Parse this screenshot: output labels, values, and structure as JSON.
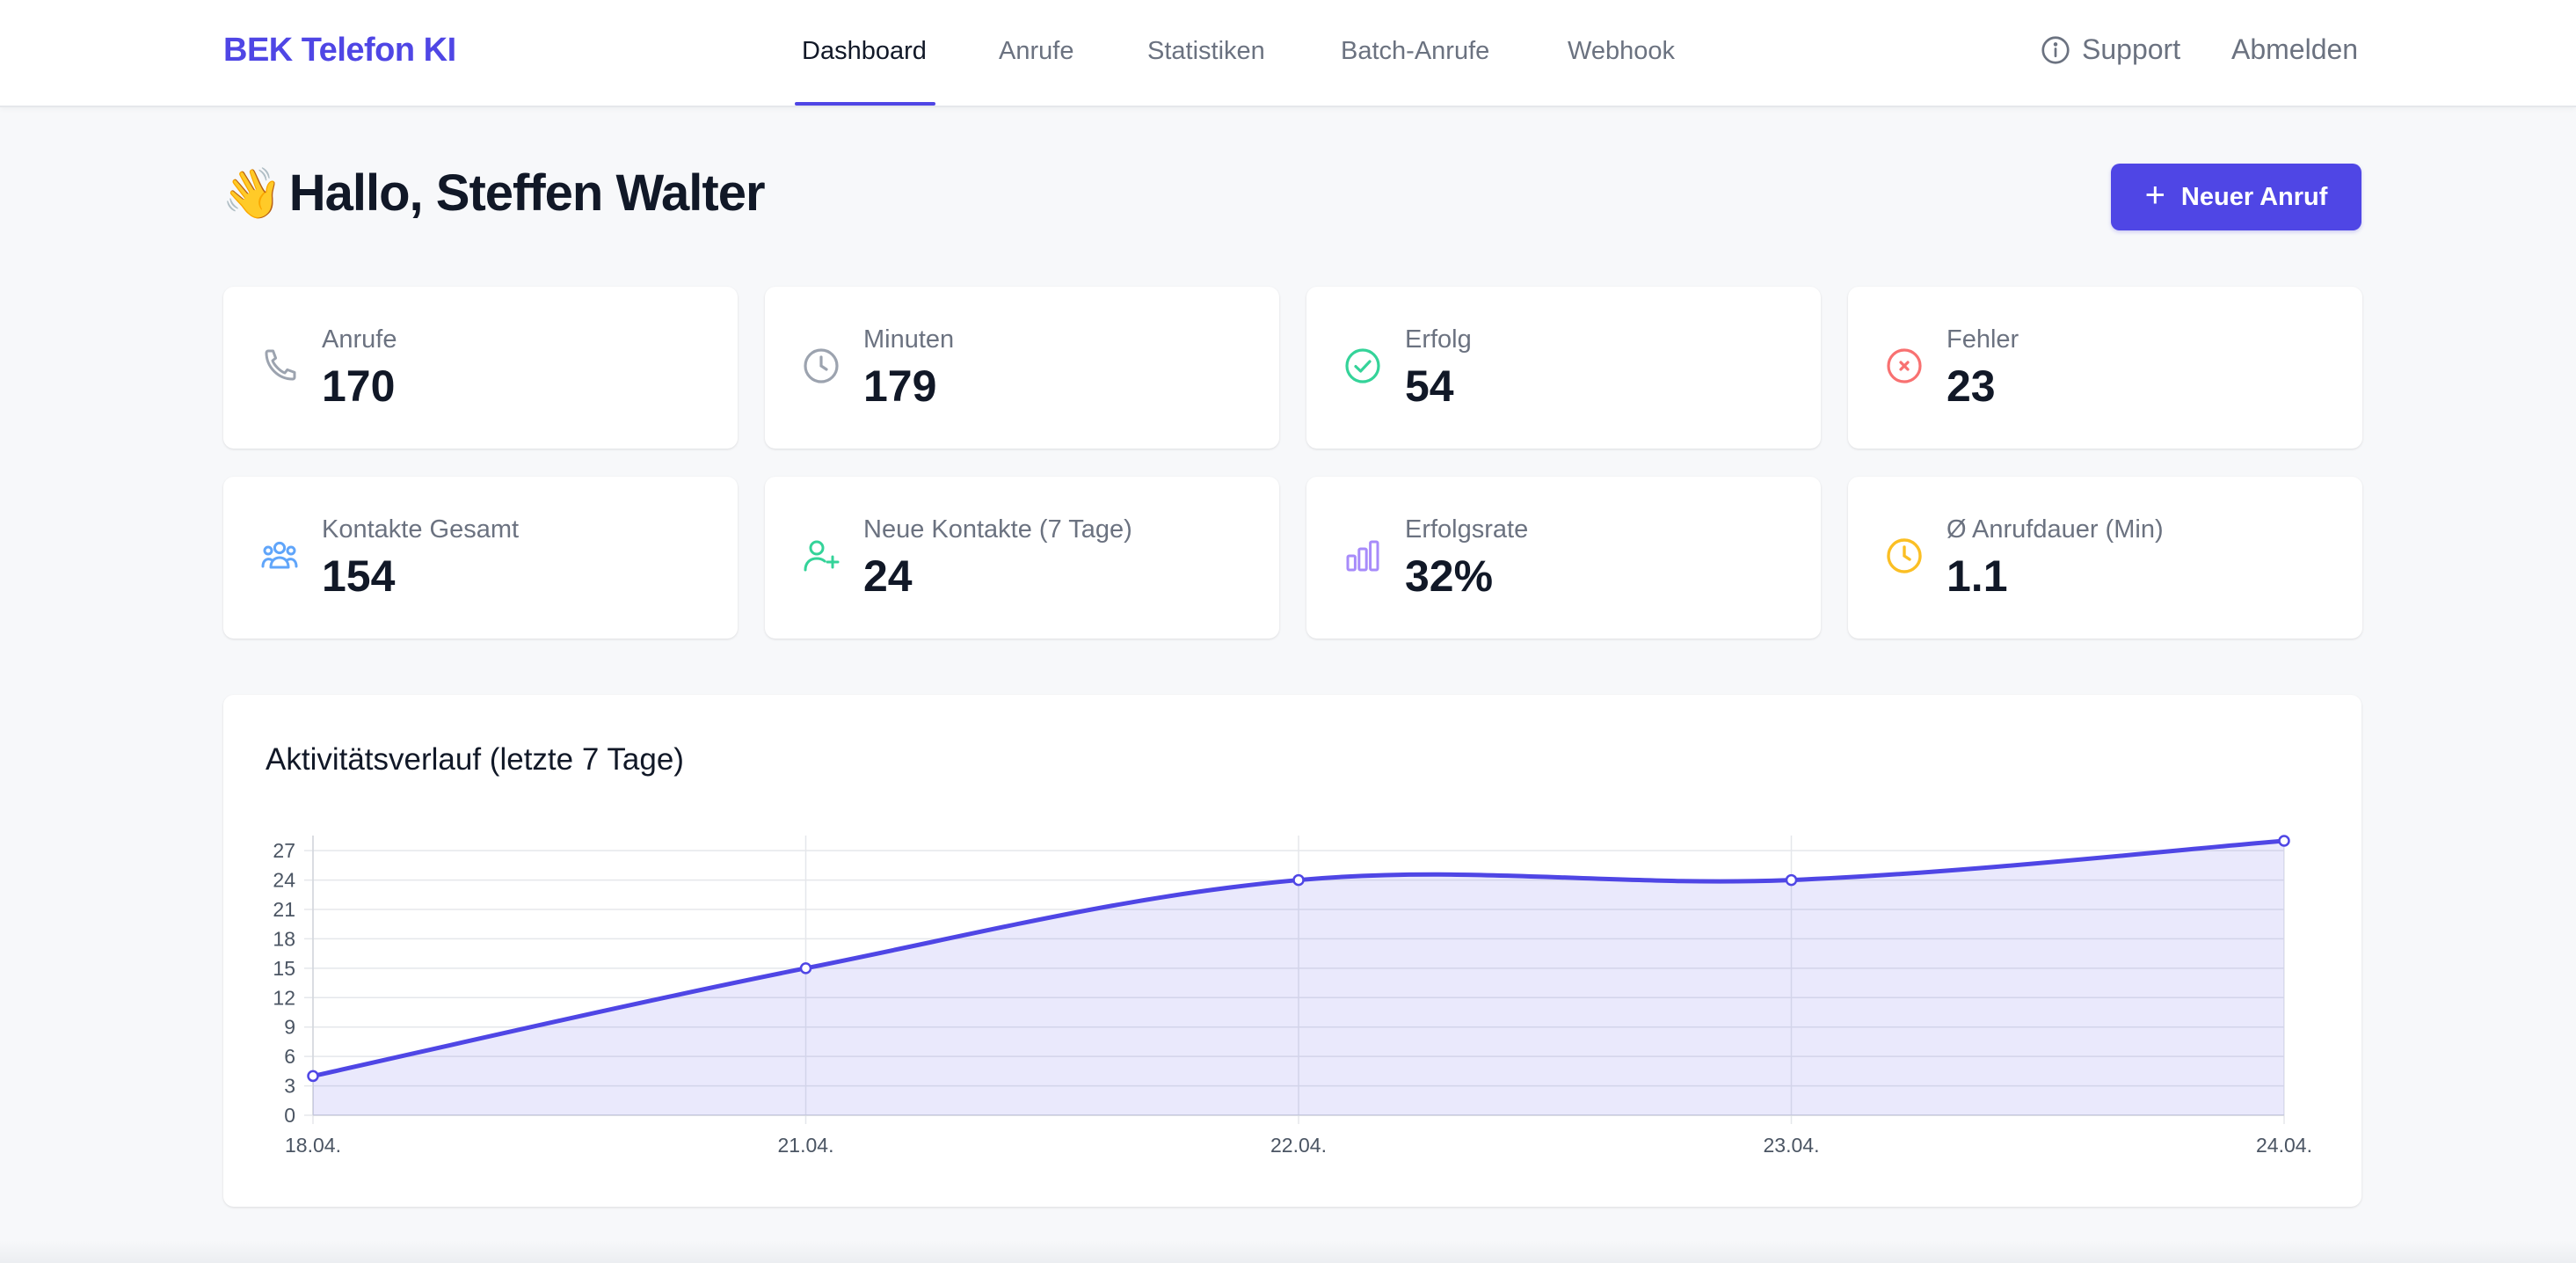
{
  "app": {
    "brand": "BEK Telefon KI",
    "accent_color": "#4f46e5"
  },
  "nav": {
    "links": [
      {
        "label": "Dashboard",
        "active": true
      },
      {
        "label": "Anrufe",
        "active": false
      },
      {
        "label": "Statistiken",
        "active": false
      },
      {
        "label": "Batch-Anrufe",
        "active": false
      },
      {
        "label": "Webhook",
        "active": false
      }
    ],
    "support_label": "Support",
    "support_icon": "info-circle-icon",
    "logout_label": "Abmelden"
  },
  "header": {
    "wave_emoji": "👋",
    "greeting": "Hallo, Steffen Walter",
    "new_call_label": "Neuer Anruf",
    "new_call_icon": "plus-icon"
  },
  "stats": [
    {
      "label": "Anrufe",
      "value": "170",
      "icon": "phone-icon",
      "color": "#9ca3af"
    },
    {
      "label": "Minuten",
      "value": "179",
      "icon": "clock-icon",
      "color": "#9ca3af"
    },
    {
      "label": "Erfolg",
      "value": "54",
      "icon": "check-circle-icon",
      "color": "#34d399"
    },
    {
      "label": "Fehler",
      "value": "23",
      "icon": "x-circle-icon",
      "color": "#f87171"
    },
    {
      "label": "Kontakte Gesamt",
      "value": "154",
      "icon": "users-icon",
      "color": "#60a5fa"
    },
    {
      "label": "Neue Kontakte (7 Tage)",
      "value": "24",
      "icon": "user-plus-icon",
      "color": "#34d399"
    },
    {
      "label": "Erfolgsrate",
      "value": "32%",
      "icon": "bar-chart-icon",
      "color": "#a78bfa"
    },
    {
      "label": "Ø Anrufdauer (Min)",
      "value": "1.1",
      "icon": "clock-icon",
      "color": "#fbbf24"
    }
  ],
  "chart_section": {
    "title": "Aktivitätsverlauf (letzte 7 Tage)"
  },
  "chart_data": {
    "type": "area",
    "categories": [
      "18.04.",
      "21.04.",
      "22.04.",
      "23.04.",
      "24.04."
    ],
    "series": [
      {
        "values": [
          4,
          15,
          24,
          24,
          28
        ],
        "color": "#4f46e5",
        "fill": "rgba(79,70,229,0.12)"
      }
    ],
    "y_ticks": [
      0,
      3,
      6,
      9,
      12,
      15,
      18,
      21,
      24,
      27
    ],
    "ylim": [
      0,
      28
    ],
    "grid": true,
    "title": "Aktivitätsverlauf (letzte 7 Tage)",
    "xlabel": "",
    "ylabel": ""
  }
}
